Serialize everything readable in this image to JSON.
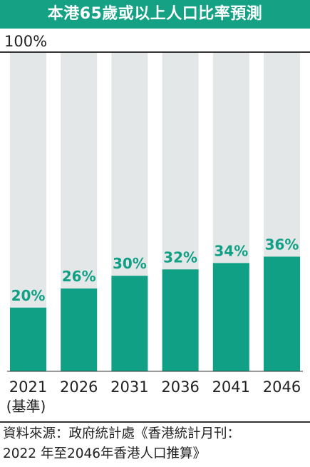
{
  "title": "本港65歲或以上人口比率預測",
  "colors": {
    "accent": "#14a184",
    "bar": "#0fa085",
    "track": "#e4e7e8",
    "axis": "#333333",
    "label": "#0fa085"
  },
  "chart_data": {
    "type": "bar",
    "title": "本港65歲或以上人口比率預測",
    "top_label": "100%",
    "categories": [
      "2021",
      "2026",
      "2031",
      "2036",
      "2041",
      "2046"
    ],
    "category_notes": [
      "(基準)",
      "",
      "",
      "",
      "",
      ""
    ],
    "values": [
      20,
      26,
      30,
      32,
      34,
      36
    ],
    "value_labels": [
      "20%",
      "26%",
      "30%",
      "32%",
      "34%",
      "36%"
    ],
    "ylim": [
      0,
      100
    ],
    "background_bars": true,
    "grid": false,
    "legend": "none"
  },
  "source": {
    "line1": "資料來源：政府統計處《香港統計月刊：",
    "line2": "2022 年至2046年香港人口推算》"
  }
}
